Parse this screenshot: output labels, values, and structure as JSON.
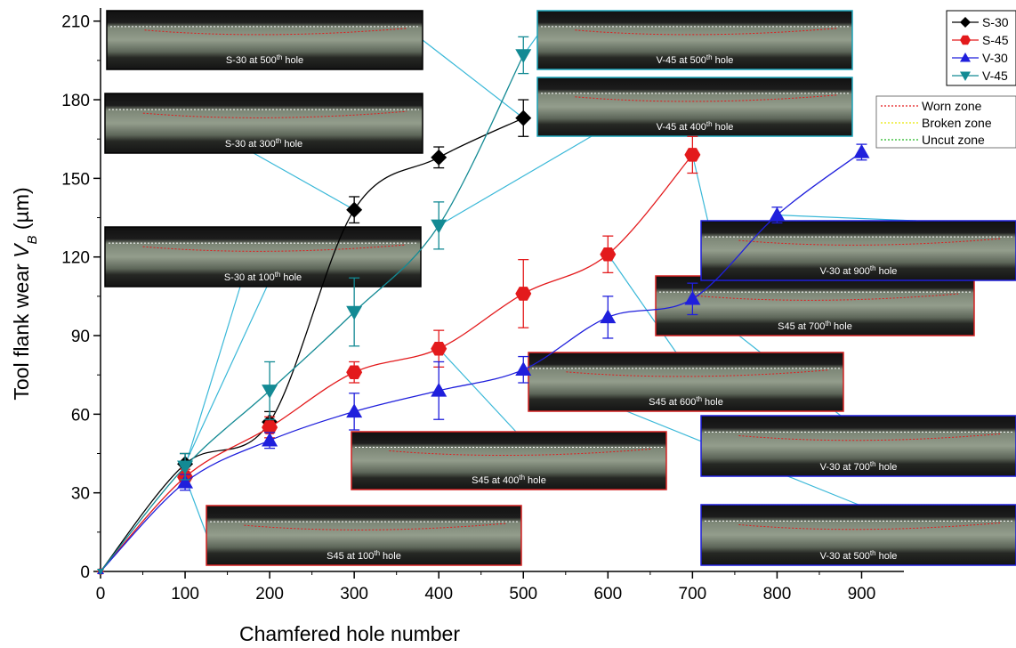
{
  "chart_data": {
    "type": "line",
    "x_label": "Chamfered hole number",
    "y_label": {
      "text": "Tool flank wear",
      "symbol": "V",
      "subscript": "B",
      "unit": "(µm)"
    },
    "xlim": [
      0,
      950
    ],
    "ylim": [
      0,
      215
    ],
    "xticks": [
      0,
      100,
      200,
      300,
      400,
      500,
      600,
      700,
      800,
      900
    ],
    "yticks": [
      0,
      30,
      60,
      90,
      120,
      150,
      180,
      210
    ],
    "legend": "top-right",
    "series": [
      {
        "name": "S-30",
        "color": "#000000",
        "marker": "diamond",
        "x": [
          0,
          100,
          200,
          300,
          400,
          500
        ],
        "values": [
          0,
          41,
          57,
          138,
          158,
          173
        ],
        "errors": [
          null,
          4,
          4,
          5,
          4,
          7
        ]
      },
      {
        "name": "S-45",
        "color": "#e31a1c",
        "marker": "hexagon",
        "x": [
          0,
          100,
          200,
          300,
          400,
          500,
          600,
          700
        ],
        "values": [
          0,
          36,
          55,
          76,
          85,
          106,
          121,
          159
        ],
        "errors": [
          null,
          3,
          4,
          4,
          7,
          13,
          7,
          7
        ]
      },
      {
        "name": "V-30",
        "color": "#1f1fdc",
        "marker": "triangle-up",
        "x": [
          0,
          100,
          200,
          300,
          400,
          500,
          600,
          700,
          800,
          900
        ],
        "values": [
          0,
          34,
          50,
          61,
          69,
          77,
          97,
          104,
          136,
          160
        ],
        "errors": [
          null,
          3,
          3,
          7,
          11,
          5,
          8,
          6,
          3,
          3
        ]
      },
      {
        "name": "V-45",
        "color": "#138a94",
        "marker": "triangle-down",
        "x": [
          0,
          100,
          200,
          300,
          400,
          500
        ],
        "values": [
          0,
          40,
          69,
          99,
          132,
          197
        ],
        "errors": [
          null,
          5,
          11,
          13,
          9,
          7
        ]
      }
    ],
    "zone_legend": [
      {
        "name": "Worn zone",
        "color": "#e31a1c"
      },
      {
        "name": "Broken zone",
        "color": "#e8e800"
      },
      {
        "name": "Uncut zone",
        "color": "#22b822"
      }
    ],
    "insets": [
      {
        "label": "S-30 at 500",
        "sup": "th",
        "suffix": "hole",
        "color": "#000000"
      },
      {
        "label": "S-30 at 300",
        "sup": "th",
        "suffix": "hole",
        "color": "#000000"
      },
      {
        "label": "S-30 at 100",
        "sup": "th",
        "suffix": "hole",
        "color": "#000000"
      },
      {
        "label": "S45 at 100",
        "sup": "th",
        "suffix": "hole",
        "color": "#d42020"
      },
      {
        "label": "S45 at 400",
        "sup": "th",
        "suffix": "hole",
        "color": "#d42020"
      },
      {
        "label": "S45 at 600",
        "sup": "th",
        "suffix": "hole",
        "color": "#d42020"
      },
      {
        "label": "S45 at 700",
        "sup": "th",
        "suffix": "hole",
        "color": "#d42020"
      },
      {
        "label": "V-45 at 500",
        "sup": "th",
        "suffix": "hole",
        "color": "#1aa3b8"
      },
      {
        "label": "V-45 at 400",
        "sup": "th",
        "suffix": "hole",
        "color": "#1aa3b8"
      },
      {
        "label": "V-30 at 900",
        "sup": "th",
        "suffix": "hole",
        "color": "#1f1fdc"
      },
      {
        "label": "V-30 at 700",
        "sup": "th",
        "suffix": "hole",
        "color": "#1f1fdc"
      },
      {
        "label": "V-30 at 500",
        "sup": "th",
        "suffix": "hole",
        "color": "#1f1fdc"
      }
    ]
  }
}
